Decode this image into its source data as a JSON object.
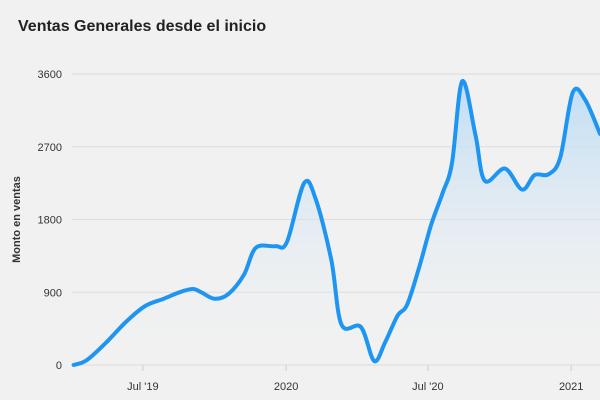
{
  "header": {
    "title": "Ventas Generales desde el inicio"
  },
  "chart_data": {
    "type": "area",
    "title": "Ventas Generales desde el inicio",
    "xlabel": "",
    "ylabel": "Monto en ventas",
    "ylim": [
      0,
      3600
    ],
    "y_ticks": [
      0,
      900,
      1800,
      2700,
      3600
    ],
    "x_range": [
      "2019-04-01",
      "2021-02-07"
    ],
    "x_ticks": [
      {
        "date": "2019-07-01",
        "label": "Jul '19"
      },
      {
        "date": "2020-01-01",
        "label": "2020"
      },
      {
        "date": "2020-07-01",
        "label": "Jul '20"
      },
      {
        "date": "2021-01-01",
        "label": "2021"
      }
    ],
    "grid": true,
    "colors": {
      "line": "#1f95f2",
      "area_top": "#bcdcf5",
      "grid": "#dcdcdc",
      "background": "#f1f1f1"
    },
    "series": [
      {
        "x": [
          "2019-04-03",
          "2019-04-20",
          "2019-05-14",
          "2019-06-10",
          "2019-07-04",
          "2019-07-28",
          "2019-08-17",
          "2019-09-03",
          "2019-09-14",
          "2019-10-01",
          "2019-10-19",
          "2019-11-08",
          "2019-11-23",
          "2019-12-18",
          "2020-01-02",
          "2020-01-24",
          "2020-02-08",
          "2020-02-28",
          "2020-03-12",
          "2020-04-06",
          "2020-04-23",
          "2020-05-07",
          "2020-05-23",
          "2020-06-04",
          "2020-06-19",
          "2020-07-05",
          "2020-07-20",
          "2020-08-01",
          "2020-08-14",
          "2020-08-31",
          "2020-09-12",
          "2020-10-08",
          "2020-10-30",
          "2020-11-15",
          "2020-12-03",
          "2020-12-18",
          "2021-01-03",
          "2021-01-19",
          "2021-02-07"
        ],
        "y": [
          0,
          60,
          270,
          540,
          730,
          820,
          900,
          940,
          900,
          820,
          880,
          1120,
          1450,
          1470,
          1520,
          2250,
          2050,
          1300,
          500,
          470,
          50,
          280,
          610,
          740,
          1180,
          1730,
          2130,
          2500,
          3510,
          2850,
          2280,
          2430,
          2170,
          2350,
          2360,
          2570,
          3370,
          3280,
          2860
        ]
      }
    ]
  }
}
